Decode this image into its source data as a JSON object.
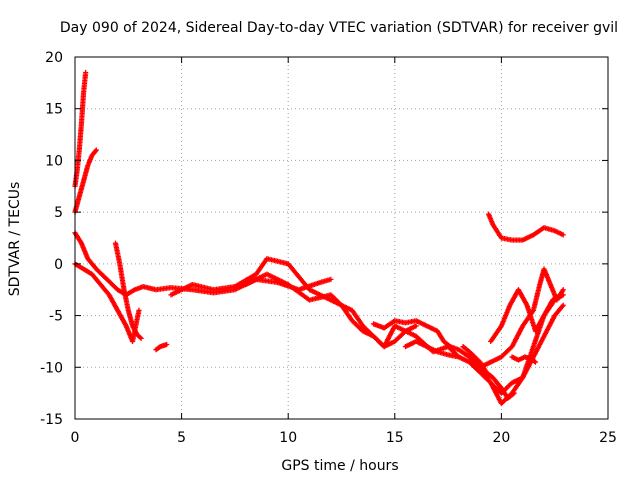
{
  "chart_data": {
    "type": "scatter",
    "title": "Day 090 of 2024, Sidereal Day-to-day VTEC variation (SDTVAR) for receiver gvil",
    "xlabel": "GPS time / hours",
    "ylabel": "SDTVAR / TECUs",
    "xlim": [
      0,
      25
    ],
    "ylim": [
      -15,
      20
    ],
    "xticks": [
      0,
      5,
      10,
      15,
      20,
      25
    ],
    "yticks": [
      -15,
      -10,
      -5,
      0,
      5,
      10,
      15,
      20
    ],
    "xtick_labels": [
      "0",
      "5",
      "10",
      "15",
      "20",
      "25"
    ],
    "ytick_labels": [
      "-15",
      "-10",
      "-5",
      "0",
      "5",
      "10",
      "15",
      "20"
    ],
    "grid": true,
    "marker": "+",
    "color": "#ff0000",
    "series": [
      {
        "name": "spike-a",
        "x": [
          0.0,
          0.1,
          0.2,
          0.3,
          0.4,
          0.5
        ],
        "y": [
          7.5,
          9.0,
          11.0,
          13.5,
          16.5,
          18.5
        ]
      },
      {
        "name": "spike-b",
        "x": [
          0.0,
          0.2,
          0.4,
          0.6,
          0.8,
          1.0
        ],
        "y": [
          5.0,
          6.5,
          8.0,
          9.5,
          10.5,
          11.0
        ]
      },
      {
        "name": "s1",
        "x": [
          0.0,
          0.3,
          0.6,
          1.0,
          1.5,
          2.0,
          2.4,
          2.8,
          3.2,
          3.8,
          4.5,
          5.5,
          6.5,
          7.5,
          8.5,
          9.5,
          10.5,
          11.5,
          12.0
        ],
        "y": [
          3.0,
          2.0,
          0.5,
          -0.5,
          -1.5,
          -2.5,
          -3.0,
          -2.5,
          -2.2,
          -2.5,
          -2.3,
          -2.5,
          -2.8,
          -2.5,
          -1.5,
          -1.8,
          -2.5,
          -1.8,
          -1.5
        ]
      },
      {
        "name": "s2",
        "x": [
          0.0,
          0.4,
          0.8,
          1.2,
          1.6,
          2.0,
          2.4,
          2.7,
          3.0
        ],
        "y": [
          0.0,
          -0.5,
          -1.0,
          -2.0,
          -3.0,
          -4.5,
          -6.0,
          -7.5,
          -4.5
        ]
      },
      {
        "name": "s3",
        "x": [
          1.9,
          2.1,
          2.3,
          2.5,
          2.7,
          2.9,
          3.1
        ],
        "y": [
          2.0,
          0.0,
          -2.5,
          -4.5,
          -6.0,
          -6.8,
          -7.2
        ]
      },
      {
        "name": "s4",
        "x": [
          3.8,
          4.0,
          4.3
        ],
        "y": [
          -8.3,
          -8.0,
          -7.8
        ]
      },
      {
        "name": "s5",
        "x": [
          4.5,
          5.5,
          6.5,
          7.5,
          8.5,
          9.0,
          10.0,
          11.0,
          12.0,
          13.0,
          13.5,
          14.0,
          14.5,
          15.0,
          16.0,
          16.8,
          17.5,
          18.0
        ],
        "y": [
          -3.0,
          -2.0,
          -2.5,
          -2.2,
          -1.0,
          0.5,
          0.0,
          -2.5,
          -3.5,
          -4.5,
          -6.0,
          -7.0,
          -8.0,
          -6.0,
          -7.0,
          -8.5,
          -8.0,
          -9.0
        ]
      },
      {
        "name": "s6",
        "x": [
          8.0,
          9.0,
          10.0,
          11.0,
          12.0,
          12.5,
          13.0,
          13.5,
          14.0,
          14.5,
          15.0,
          15.5,
          16.0
        ],
        "y": [
          -2.0,
          -1.0,
          -2.0,
          -3.5,
          -3.0,
          -4.0,
          -5.5,
          -6.5,
          -7.0,
          -8.0,
          -7.5,
          -6.5,
          -6.0
        ]
      },
      {
        "name": "s7",
        "x": [
          14.0,
          14.5,
          15.0,
          15.5,
          16.0,
          16.5,
          17.0,
          17.3,
          17.6,
          18.0,
          18.5
        ],
        "y": [
          -5.8,
          -6.2,
          -5.5,
          -5.7,
          -5.5,
          -6.0,
          -6.5,
          -7.5,
          -8.0,
          -8.3,
          -9.0
        ]
      },
      {
        "name": "s8",
        "x": [
          15.5,
          16.0,
          16.5,
          17.0,
          17.5,
          18.0,
          18.5,
          19.0,
          19.5,
          20.0,
          20.5,
          21.0,
          21.5,
          22.0,
          22.5,
          22.9
        ],
        "y": [
          -8.0,
          -7.5,
          -8.0,
          -8.5,
          -8.8,
          -9.0,
          -9.5,
          -10.5,
          -11.5,
          -12.5,
          -11.5,
          -11.0,
          -9.0,
          -7.0,
          -5.0,
          -4.0
        ]
      },
      {
        "name": "s9",
        "x": [
          18.5,
          19.0,
          19.5,
          20.0,
          20.5,
          21.0,
          21.5,
          22.0,
          22.5,
          22.9
        ],
        "y": [
          -9.0,
          -10.0,
          -11.5,
          -13.5,
          -12.5,
          -11.0,
          -8.0,
          -5.0,
          -3.5,
          -3.0
        ]
      },
      {
        "name": "s10",
        "x": [
          18.2,
          18.5,
          19.0,
          19.3,
          19.6,
          20.0,
          20.3,
          20.6
        ],
        "y": [
          -8.0,
          -8.5,
          -9.5,
          -10.5,
          -11.0,
          -12.0,
          -13.0,
          -12.5
        ]
      },
      {
        "name": "s11",
        "x": [
          19.0,
          19.5,
          20.0,
          20.5,
          21.0,
          21.5,
          21.8,
          22.0,
          22.3,
          22.6,
          22.9
        ],
        "y": [
          -10.0,
          -9.5,
          -9.0,
          -8.0,
          -6.0,
          -4.5,
          -2.0,
          -0.5,
          -2.0,
          -3.5,
          -2.5
        ]
      },
      {
        "name": "s12",
        "x": [
          19.5,
          20.0,
          20.4,
          20.8,
          21.2,
          21.6,
          22.0,
          22.4,
          22.8
        ],
        "y": [
          -7.5,
          -6.0,
          -4.0,
          -2.5,
          -4.0,
          -6.5,
          -5.0,
          -3.5,
          -3.0
        ]
      },
      {
        "name": "s13",
        "x": [
          20.5,
          20.8,
          21.1,
          21.4,
          21.6
        ],
        "y": [
          -9.0,
          -9.3,
          -9.0,
          -9.2,
          -9.5
        ]
      },
      {
        "name": "s14",
        "x": [
          19.4,
          19.6,
          20.0,
          20.5,
          21.0,
          21.5,
          22.0,
          22.5,
          22.9
        ],
        "y": [
          4.8,
          3.8,
          2.5,
          2.3,
          2.3,
          2.8,
          3.5,
          3.2,
          2.8
        ]
      }
    ]
  }
}
